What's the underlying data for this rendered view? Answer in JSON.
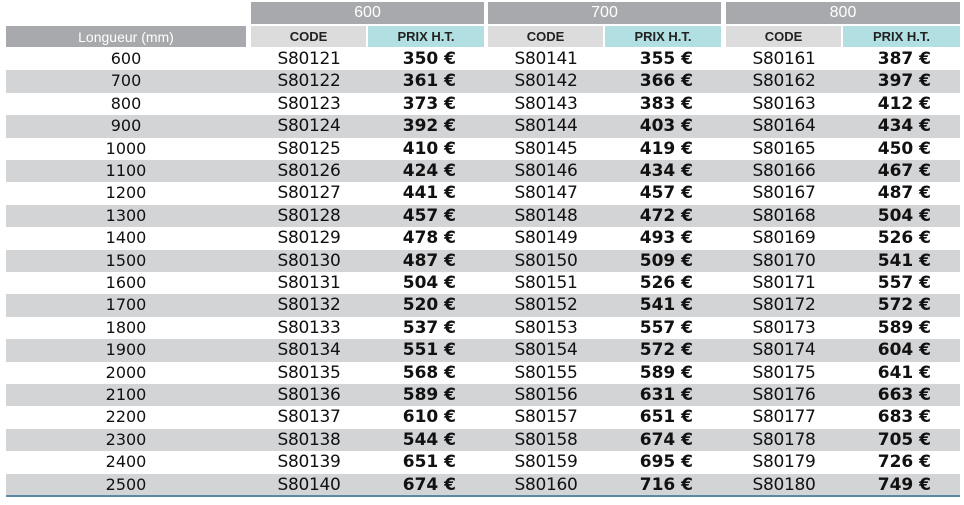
{
  "header": {
    "length_label": "Longueur (mm)",
    "groups": [
      "600",
      "700",
      "800"
    ],
    "code_label": "CODE",
    "price_label": "PRIX H.T."
  },
  "rows": [
    {
      "len": "600",
      "c1": "S80121",
      "p1": "350 €",
      "c2": "S80141",
      "p2": "355 €",
      "c3": "S80161",
      "p3": "387 €"
    },
    {
      "len": "700",
      "c1": "S80122",
      "p1": "361 €",
      "c2": "S80142",
      "p2": "366 €",
      "c3": "S80162",
      "p3": "397 €"
    },
    {
      "len": "800",
      "c1": "S80123",
      "p1": "373 €",
      "c2": "S80143",
      "p2": "383 €",
      "c3": "S80163",
      "p3": "412 €"
    },
    {
      "len": "900",
      "c1": "S80124",
      "p1": "392 €",
      "c2": "S80144",
      "p2": "403 €",
      "c3": "S80164",
      "p3": "434 €"
    },
    {
      "len": "1000",
      "c1": "S80125",
      "p1": "410 €",
      "c2": "S80145",
      "p2": "419 €",
      "c3": "S80165",
      "p3": "450 €"
    },
    {
      "len": "1100",
      "c1": "S80126",
      "p1": "424 €",
      "c2": "S80146",
      "p2": "434 €",
      "c3": "S80166",
      "p3": "467 €"
    },
    {
      "len": "1200",
      "c1": "S80127",
      "p1": "441 €",
      "c2": "S80147",
      "p2": "457 €",
      "c3": "S80167",
      "p3": "487 €"
    },
    {
      "len": "1300",
      "c1": "S80128",
      "p1": "457 €",
      "c2": "S80148",
      "p2": "472 €",
      "c3": "S80168",
      "p3": "504 €"
    },
    {
      "len": "1400",
      "c1": "S80129",
      "p1": "478 €",
      "c2": "S80149",
      "p2": "493 €",
      "c3": "S80169",
      "p3": "526 €"
    },
    {
      "len": "1500",
      "c1": "S80130",
      "p1": "487 €",
      "c2": "S80150",
      "p2": "509 €",
      "c3": "S80170",
      "p3": "541 €"
    },
    {
      "len": "1600",
      "c1": "S80131",
      "p1": "504 €",
      "c2": "S80151",
      "p2": "526 €",
      "c3": "S80171",
      "p3": "557 €"
    },
    {
      "len": "1700",
      "c1": "S80132",
      "p1": "520 €",
      "c2": "S80152",
      "p2": "541 €",
      "c3": "S80172",
      "p3": "572 €"
    },
    {
      "len": "1800",
      "c1": "S80133",
      "p1": "537 €",
      "c2": "S80153",
      "p2": "557 €",
      "c3": "S80173",
      "p3": "589 €"
    },
    {
      "len": "1900",
      "c1": "S80134",
      "p1": "551 €",
      "c2": "S80154",
      "p2": "572 €",
      "c3": "S80174",
      "p3": "604 €"
    },
    {
      "len": "2000",
      "c1": "S80135",
      "p1": "568 €",
      "c2": "S80155",
      "p2": "589 €",
      "c3": "S80175",
      "p3": "641 €"
    },
    {
      "len": "2100",
      "c1": "S80136",
      "p1": "589 €",
      "c2": "S80156",
      "p2": "631 €",
      "c3": "S80176",
      "p3": "663 €"
    },
    {
      "len": "2200",
      "c1": "S80137",
      "p1": "610 €",
      "c2": "S80157",
      "p2": "651 €",
      "c3": "S80177",
      "p3": "683 €"
    },
    {
      "len": "2300",
      "c1": "S80138",
      "p1": "544 €",
      "c2": "S80158",
      "p2": "674 €",
      "c3": "S80178",
      "p3": "705 €"
    },
    {
      "len": "2400",
      "c1": "S80139",
      "p1": "651 €",
      "c2": "S80159",
      "p2": "695 €",
      "c3": "S80179",
      "p3": "726 €"
    },
    {
      "len": "2500",
      "c1": "S80140",
      "p1": "674 €",
      "c2": "S80160",
      "p2": "716 €",
      "c3": "S80180",
      "p3": "749 €"
    }
  ],
  "colors": {
    "group_header": "#a7a9ac",
    "code_header": "#dcdcdd",
    "price_header": "#b2e0e2",
    "alt_row": "#d3d4d6",
    "bottom_rule": "#5b8aa6"
  }
}
